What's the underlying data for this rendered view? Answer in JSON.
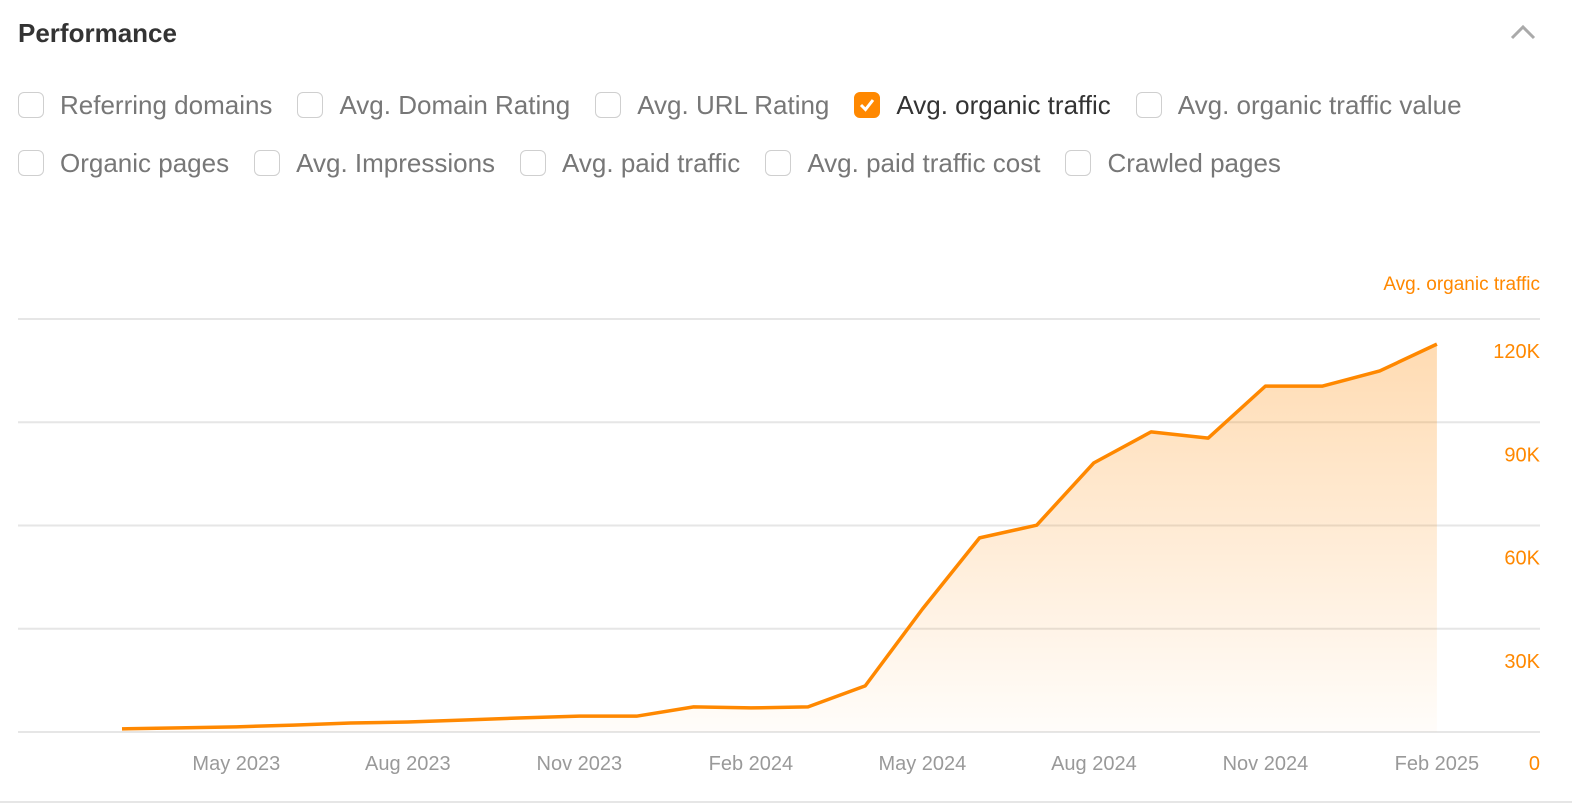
{
  "header": {
    "title": "Performance",
    "collapse_icon": "chevron-up-icon"
  },
  "metrics": [
    {
      "label": "Referring domains",
      "checked": false
    },
    {
      "label": "Avg. Domain Rating",
      "checked": false
    },
    {
      "label": "Avg. URL Rating",
      "checked": false
    },
    {
      "label": "Avg. organic traffic",
      "checked": true
    },
    {
      "label": "Avg. organic traffic value",
      "checked": false
    },
    {
      "label": "Organic pages",
      "checked": false
    },
    {
      "label": "Avg. Impressions",
      "checked": false
    },
    {
      "label": "Avg. paid traffic",
      "checked": false
    },
    {
      "label": "Avg. paid traffic cost",
      "checked": false
    },
    {
      "label": "Crawled pages",
      "checked": false
    }
  ],
  "colors": {
    "accent": "#ff8800",
    "grid": "#e6e6e6",
    "tick": "#999999"
  },
  "chart_data": {
    "type": "area",
    "series": [
      {
        "name": "Avg. organic traffic",
        "color": "#ff8800",
        "x": [
          "Mar 2023",
          "Apr 2023",
          "May 2023",
          "Jun 2023",
          "Jul 2023",
          "Aug 2023",
          "Sep 2023",
          "Oct 2023",
          "Nov 2023",
          "Dec 2023",
          "Jan 2024",
          "Feb 2024",
          "Mar 2024",
          "Apr 2024",
          "May 2024",
          "Jun 2024",
          "Jul 2024",
          "Aug 2024",
          "Sep 2024",
          "Oct 2024",
          "Nov 2024",
          "Dec 2024",
          "Jan 2025",
          "Feb 2025"
        ],
        "values": [
          900,
          1200,
          1500,
          2000,
          2600,
          2900,
          3500,
          4100,
          4600,
          4600,
          7300,
          7000,
          7300,
          13400,
          35700,
          56400,
          60100,
          78200,
          87200,
          85400,
          100500,
          100500,
          104900,
          112700
        ]
      }
    ],
    "xticks": [
      "May 2023",
      "Aug 2023",
      "Nov 2023",
      "Feb 2024",
      "May 2024",
      "Aug 2024",
      "Nov 2024",
      "Feb 2025"
    ],
    "yticks": [
      {
        "value": 0,
        "label": "0"
      },
      {
        "value": 30000,
        "label": "30K"
      },
      {
        "value": 60000,
        "label": "60K"
      },
      {
        "value": 90000,
        "label": "90K"
      },
      {
        "value": 120000,
        "label": "120K"
      }
    ],
    "ylim": [
      0,
      120000
    ],
    "axis_position": "right",
    "grid": true
  }
}
